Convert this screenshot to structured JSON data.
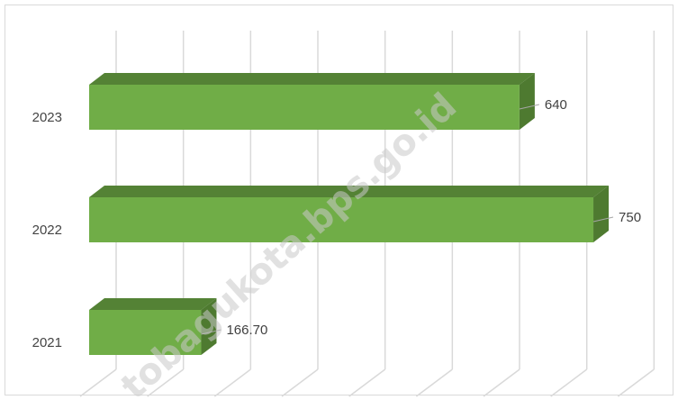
{
  "chart_data": {
    "type": "bar",
    "orientation": "horizontal",
    "style": "3d",
    "categories": [
      "2021",
      "2022",
      "2023"
    ],
    "values": [
      166.7,
      750,
      640
    ],
    "value_labels": [
      "166.70",
      "750",
      "640"
    ],
    "xlim": [
      0,
      800
    ],
    "grid": true,
    "legend": "none",
    "bar_color": "#70ad47",
    "bar_top_color": "#548235",
    "bar_side_color": "#4e7a30",
    "gridline_color": "#d9d9d9"
  },
  "watermark": {
    "text": "tobagukota.bps.go.id"
  }
}
